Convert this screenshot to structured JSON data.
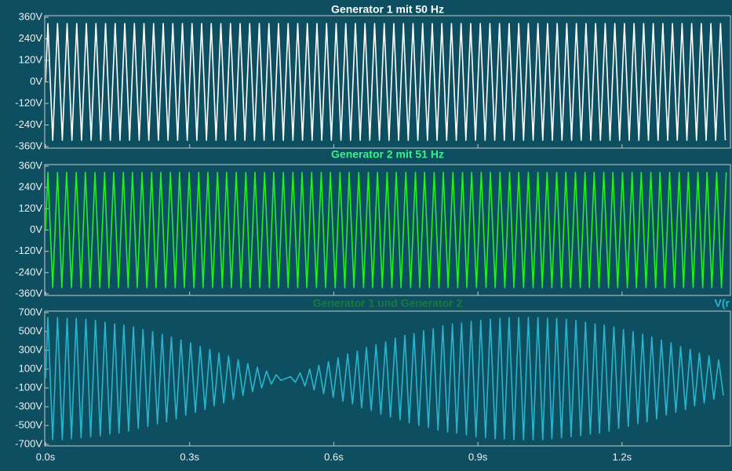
{
  "chart_data": [
    {
      "type": "line",
      "title": "Generator 1 mit 50 Hz",
      "title_color": "#ffffff",
      "xlim": [
        0,
        1.424
      ],
      "ylim": [
        -360,
        360
      ],
      "yticks": [
        {
          "value": -360,
          "label": "-360V"
        },
        {
          "value": -240,
          "label": "-240V"
        },
        {
          "value": -120,
          "label": "-120V"
        },
        {
          "value": 0,
          "label": "0V"
        },
        {
          "value": 120,
          "label": "120V"
        },
        {
          "value": 240,
          "label": "240V"
        },
        {
          "value": 360,
          "label": "360V"
        }
      ],
      "series": [
        {
          "color": "#ffffff",
          "x": [
            0,
            0.005,
            0.015,
            0.025,
            0.035,
            0.045,
            0.055,
            0.065,
            0.075,
            0.085,
            0.095,
            0.105,
            0.115,
            0.125,
            0.135,
            0.145,
            0.155,
            0.165,
            0.175,
            0.185,
            0.195,
            0.205,
            0.215,
            0.225,
            0.235,
            0.245,
            0.255,
            0.265,
            0.275,
            0.285,
            0.295,
            0.305,
            0.315,
            0.325,
            0.335,
            0.345,
            0.355,
            0.365,
            0.375,
            0.385,
            0.395,
            0.405,
            0.415,
            0.425,
            0.435,
            0.445,
            0.455,
            0.465,
            0.475,
            0.485,
            0.495,
            0.505,
            0.515,
            0.525,
            0.535,
            0.545,
            0.555,
            0.565,
            0.575,
            0.585,
            0.595,
            0.605,
            0.615,
            0.625,
            0.635,
            0.645,
            0.655,
            0.665,
            0.675,
            0.685,
            0.695,
            0.705,
            0.715,
            0.725,
            0.735,
            0.745,
            0.755,
            0.765,
            0.775,
            0.785,
            0.795,
            0.805,
            0.815,
            0.825,
            0.835,
            0.845,
            0.855,
            0.865,
            0.875,
            0.885,
            0.895,
            0.905,
            0.915,
            0.925,
            0.935,
            0.945,
            0.955,
            0.965,
            0.975,
            0.985,
            0.995,
            1.005,
            1.015,
            1.025,
            1.035,
            1.045,
            1.055,
            1.065,
            1.075,
            1.085,
            1.095,
            1.105,
            1.115,
            1.125,
            1.135,
            1.145,
            1.155,
            1.165,
            1.175,
            1.185,
            1.195,
            1.205,
            1.215,
            1.225,
            1.235,
            1.245,
            1.255,
            1.265,
            1.275,
            1.285,
            1.295,
            1.305,
            1.315,
            1.325,
            1.335,
            1.345,
            1.355,
            1.365,
            1.375,
            1.385,
            1.395,
            1.405,
            1.415
          ],
          "values": [
            0,
            325,
            -325,
            325,
            -325,
            325,
            -325,
            325,
            -325,
            325,
            -325,
            325,
            -325,
            325,
            -325,
            325,
            -325,
            325,
            -325,
            325,
            -325,
            325,
            -325,
            325,
            -325,
            325,
            -325,
            325,
            -325,
            325,
            -325,
            325,
            -325,
            325,
            -325,
            325,
            -325,
            325,
            -325,
            325,
            -325,
            325,
            -325,
            325,
            -325,
            325,
            -325,
            325,
            -325,
            325,
            -325,
            325,
            -325,
            325,
            -325,
            325,
            -325,
            325,
            -325,
            325,
            -325,
            325,
            -325,
            325,
            -325,
            325,
            -325,
            325,
            -325,
            325,
            -325,
            325,
            -325,
            325,
            -325,
            325,
            -325,
            325,
            -325,
            325,
            -325,
            325,
            -325,
            325,
            -325,
            325,
            -325,
            325,
            -325,
            325,
            -325,
            325,
            -325,
            325,
            -325,
            325,
            -325,
            325,
            -325,
            325,
            -325,
            325,
            -325,
            325,
            -325,
            325,
            -325,
            325,
            -325,
            325,
            -325,
            325,
            -325,
            325,
            -325,
            325,
            -325,
            325,
            -325,
            325,
            -325,
            325,
            -325,
            325,
            -325,
            325,
            -325,
            325,
            -325,
            325,
            -325,
            325,
            -325,
            325,
            -325,
            325,
            -325,
            325,
            -325,
            325,
            -325,
            325,
            -325
          ]
        }
      ]
    },
    {
      "type": "line",
      "title": "Generator 2 mit 51 Hz",
      "title_color": "#3df08a",
      "xlim": [
        0,
        1.424
      ],
      "ylim": [
        -360,
        360
      ],
      "yticks": [
        {
          "value": -360,
          "label": "-360V"
        },
        {
          "value": -240,
          "label": "-240V"
        },
        {
          "value": -120,
          "label": "-120V"
        },
        {
          "value": 0,
          "label": "0V"
        },
        {
          "value": 120,
          "label": "120V"
        },
        {
          "value": 240,
          "label": "240V"
        },
        {
          "value": 360,
          "label": "360V"
        }
      ],
      "series": [
        {
          "color": "#22ee22",
          "x": [
            0,
            0.005,
            0.015,
            0.025,
            0.034,
            0.044,
            0.054,
            0.064,
            0.074,
            0.083,
            0.093,
            0.103,
            0.113,
            0.123,
            0.132,
            0.142,
            0.152,
            0.162,
            0.172,
            0.181,
            0.191,
            0.201,
            0.211,
            0.221,
            0.23,
            0.24,
            0.25,
            0.26,
            0.27,
            0.279,
            0.289,
            0.299,
            0.309,
            0.319,
            0.328,
            0.338,
            0.348,
            0.358,
            0.368,
            0.377,
            0.387,
            0.397,
            0.407,
            0.417,
            0.426,
            0.436,
            0.446,
            0.456,
            0.466,
            0.475,
            0.485,
            0.495,
            0.505,
            0.515,
            0.525,
            0.534,
            0.544,
            0.554,
            0.564,
            0.574,
            0.583,
            0.593,
            0.603,
            0.613,
            0.623,
            0.632,
            0.642,
            0.652,
            0.662,
            0.672,
            0.681,
            0.691,
            0.701,
            0.711,
            0.721,
            0.73,
            0.74,
            0.75,
            0.76,
            0.77,
            0.779,
            0.789,
            0.799,
            0.809,
            0.819,
            0.828,
            0.838,
            0.848,
            0.858,
            0.868,
            0.877,
            0.887,
            0.897,
            0.907,
            0.917,
            0.926,
            0.936,
            0.946,
            0.956,
            0.966,
            0.975,
            0.985,
            0.995,
            1.005,
            1.015,
            1.025,
            1.034,
            1.044,
            1.054,
            1.064,
            1.074,
            1.083,
            1.093,
            1.103,
            1.113,
            1.123,
            1.132,
            1.142,
            1.152,
            1.162,
            1.172,
            1.181,
            1.191,
            1.201,
            1.211,
            1.221,
            1.23,
            1.24,
            1.25,
            1.26,
            1.27,
            1.279,
            1.289,
            1.299,
            1.309,
            1.319,
            1.328,
            1.338,
            1.348,
            1.358,
            1.368,
            1.377,
            1.387,
            1.397,
            1.407,
            1.417
          ],
          "values": [
            0,
            325,
            -325,
            325,
            -325,
            325,
            -325,
            325,
            -325,
            325,
            -325,
            325,
            -325,
            325,
            -325,
            325,
            -325,
            325,
            -325,
            325,
            -325,
            325,
            -325,
            325,
            -325,
            325,
            -325,
            325,
            -325,
            325,
            -325,
            325,
            -325,
            325,
            -325,
            325,
            -325,
            325,
            -325,
            325,
            -325,
            325,
            -325,
            325,
            -325,
            325,
            -325,
            325,
            -325,
            325,
            -325,
            325,
            -325,
            325,
            -325,
            325,
            -325,
            325,
            -325,
            325,
            -325,
            325,
            -325,
            325,
            -325,
            325,
            -325,
            325,
            -325,
            325,
            -325,
            325,
            -325,
            325,
            -325,
            325,
            -325,
            325,
            -325,
            325,
            -325,
            325,
            -325,
            325,
            -325,
            325,
            -325,
            325,
            -325,
            325,
            -325,
            325,
            -325,
            325,
            -325,
            325,
            -325,
            325,
            -325,
            325,
            -325,
            325,
            -325,
            325,
            -325,
            325,
            -325,
            325,
            -325,
            325,
            -325,
            325,
            -325,
            325,
            -325,
            325,
            -325,
            325,
            -325,
            325,
            -325,
            325,
            -325,
            325,
            -325,
            325,
            -325,
            325,
            -325,
            325,
            -325,
            325,
            -325,
            325,
            -325,
            325,
            -325,
            325,
            -325,
            325,
            -325,
            325,
            -325,
            325,
            -325,
            325
          ]
        }
      ]
    },
    {
      "type": "line",
      "title": "Generator 1 und Generator 2",
      "title_color": "#1a7a3c",
      "xlim": [
        0,
        1.424
      ],
      "ylim": [
        -700,
        700
      ],
      "xticks": [
        {
          "value": 0,
          "label": "0.0s"
        },
        {
          "value": 0.3,
          "label": "0.3s"
        },
        {
          "value": 0.6,
          "label": "0.6s"
        },
        {
          "value": 0.9,
          "label": "0.9s"
        },
        {
          "value": 1.2,
          "label": "1.2s"
        }
      ],
      "yticks": [
        {
          "value": -700,
          "label": "-700V"
        },
        {
          "value": -500,
          "label": "-500V"
        },
        {
          "value": -300,
          "label": "-300V"
        },
        {
          "value": -100,
          "label": "-100V"
        },
        {
          "value": 100,
          "label": "100V"
        },
        {
          "value": 300,
          "label": "300V"
        },
        {
          "value": 500,
          "label": "500V"
        },
        {
          "value": 700,
          "label": "700V"
        }
      ],
      "series": [
        {
          "name": "V(r",
          "color": "#2ab4cc",
          "x": [
            0,
            0.005,
            0.015,
            0.025,
            0.035,
            0.045,
            0.054,
            0.064,
            0.074,
            0.084,
            0.094,
            0.104,
            0.114,
            0.124,
            0.134,
            0.144,
            0.153,
            0.163,
            0.173,
            0.183,
            0.193,
            0.203,
            0.213,
            0.223,
            0.233,
            0.243,
            0.252,
            0.262,
            0.272,
            0.282,
            0.292,
            0.302,
            0.312,
            0.322,
            0.332,
            0.342,
            0.351,
            0.361,
            0.371,
            0.381,
            0.391,
            0.401,
            0.411,
            0.421,
            0.431,
            0.441,
            0.45,
            0.46,
            0.47,
            0.48,
            0.49,
            0.5,
            0.51,
            0.52,
            0.53,
            0.54,
            0.55,
            0.559,
            0.569,
            0.579,
            0.589,
            0.599,
            0.609,
            0.619,
            0.629,
            0.639,
            0.649,
            0.658,
            0.668,
            0.678,
            0.688,
            0.698,
            0.708,
            0.718,
            0.728,
            0.738,
            0.748,
            0.757,
            0.767,
            0.777,
            0.787,
            0.797,
            0.807,
            0.817,
            0.827,
            0.837,
            0.847,
            0.856,
            0.866,
            0.876,
            0.886,
            0.896,
            0.906,
            0.916,
            0.926,
            0.936,
            0.946,
            0.955,
            0.965,
            0.975,
            0.985,
            0.995,
            1.005,
            1.015,
            1.025,
            1.035,
            1.045,
            1.054,
            1.064,
            1.074,
            1.084,
            1.094,
            1.104,
            1.114,
            1.124,
            1.134,
            1.144,
            1.153,
            1.163,
            1.173,
            1.183,
            1.193,
            1.203,
            1.213,
            1.223,
            1.233,
            1.243,
            1.252,
            1.262,
            1.272,
            1.282,
            1.292,
            1.302,
            1.312,
            1.322,
            1.332,
            1.342,
            1.351,
            1.361,
            1.371,
            1.381,
            1.391,
            1.401,
            1.411
          ],
          "values": [
            0,
            650,
            -650,
            650,
            -650,
            640,
            -640,
            640,
            -630,
            630,
            -620,
            620,
            -610,
            600,
            -590,
            580,
            -580,
            570,
            -560,
            550,
            -530,
            520,
            -510,
            500,
            -480,
            470,
            -460,
            440,
            -430,
            410,
            -390,
            380,
            -360,
            340,
            -330,
            310,
            -290,
            270,
            -260,
            240,
            -220,
            200,
            -180,
            160,
            -140,
            120,
            -100,
            80,
            -60,
            40,
            -20,
            0,
            20,
            -40,
            60,
            -80,
            100,
            -120,
            140,
            -160,
            180,
            -200,
            220,
            -240,
            260,
            -270,
            290,
            -310,
            330,
            -340,
            360,
            -380,
            390,
            -410,
            430,
            -440,
            460,
            -470,
            480,
            -500,
            510,
            -520,
            530,
            -550,
            560,
            -570,
            580,
            -580,
            590,
            -600,
            610,
            -620,
            620,
            -630,
            630,
            -640,
            640,
            -640,
            650,
            -650,
            650,
            -650,
            650,
            -650,
            650,
            -650,
            640,
            -640,
            640,
            -630,
            630,
            -620,
            620,
            -610,
            600,
            -590,
            580,
            -580,
            570,
            -560,
            550,
            -530,
            520,
            -510,
            500,
            -480,
            470,
            -460,
            440,
            -430,
            410,
            -390,
            380,
            -360,
            340,
            -330,
            310,
            -290,
            270,
            -260,
            240,
            -220,
            200,
            -180
          ]
        }
      ]
    }
  ]
}
